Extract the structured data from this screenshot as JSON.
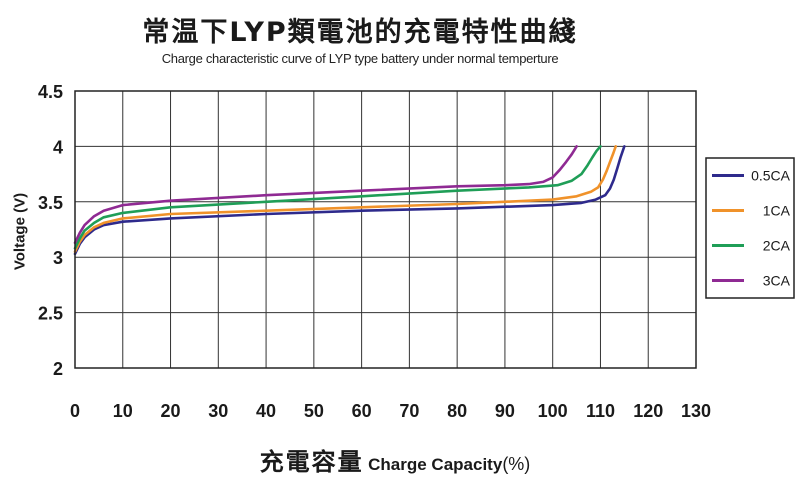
{
  "chart_data": {
    "type": "line",
    "title": "常温下LYP類電池的充電特性曲綫",
    "subtitle": "Charge characteristic curve of LYP type battery under normal temperture",
    "xlabel_cn": "充電容量",
    "xlabel": "Charge Capacity",
    "xlabel_unit": "(%)",
    "ylabel": "Voltage (V)",
    "xlim": [
      0,
      130
    ],
    "ylim": [
      2,
      4.5
    ],
    "xticks": [
      "0",
      "10",
      "20",
      "30",
      "40",
      "50",
      "60",
      "70",
      "80",
      "90",
      "100",
      "110",
      "120",
      "130"
    ],
    "yticks": [
      "2",
      "2.5",
      "3",
      "3.5",
      "4",
      "4.5"
    ],
    "grid": true,
    "legend_position": "right",
    "series": [
      {
        "name": "0.5CA",
        "color": "#2e2a8c",
        "x": [
          0,
          1,
          2,
          4,
          6,
          10,
          20,
          40,
          60,
          80,
          100,
          106,
          109,
          111,
          112,
          112.8,
          113.5,
          114.2,
          115
        ],
        "y": [
          3.03,
          3.12,
          3.18,
          3.25,
          3.29,
          3.32,
          3.35,
          3.39,
          3.42,
          3.44,
          3.47,
          3.49,
          3.52,
          3.56,
          3.62,
          3.7,
          3.8,
          3.9,
          4.0
        ]
      },
      {
        "name": "1CA",
        "color": "#f0922a",
        "x": [
          0,
          1,
          2,
          4,
          6,
          10,
          20,
          40,
          60,
          80,
          100,
          105,
          108,
          109.5,
          110.5,
          111.3,
          112,
          112.7,
          113.2
        ],
        "y": [
          3.05,
          3.14,
          3.2,
          3.27,
          3.31,
          3.35,
          3.39,
          3.42,
          3.45,
          3.48,
          3.52,
          3.55,
          3.59,
          3.63,
          3.7,
          3.78,
          3.86,
          3.94,
          4.0
        ]
      },
      {
        "name": "2CA",
        "color": "#1f9e57",
        "x": [
          0,
          1,
          2,
          4,
          6,
          10,
          20,
          40,
          60,
          80,
          95,
          101,
          104,
          106,
          107.3,
          108.3,
          109.2,
          110
        ],
        "y": [
          3.08,
          3.17,
          3.24,
          3.31,
          3.36,
          3.4,
          3.45,
          3.5,
          3.55,
          3.6,
          3.63,
          3.65,
          3.69,
          3.75,
          3.83,
          3.9,
          3.96,
          4.0
        ]
      },
      {
        "name": "3CA",
        "color": "#8f2a93",
        "x": [
          0,
          1,
          2,
          4,
          6,
          10,
          20,
          40,
          60,
          80,
          90,
          95,
          98,
          100,
          101.5,
          102.8,
          104,
          105
        ],
        "y": [
          3.13,
          3.22,
          3.29,
          3.37,
          3.42,
          3.47,
          3.51,
          3.56,
          3.6,
          3.64,
          3.65,
          3.66,
          3.68,
          3.72,
          3.79,
          3.86,
          3.93,
          4.0
        ]
      }
    ]
  }
}
